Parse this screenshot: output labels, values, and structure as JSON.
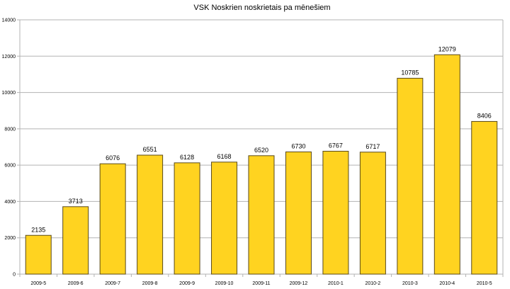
{
  "chart_data": {
    "type": "bar",
    "title": "VSK Noskrien noskrietais pa mēnešiem",
    "xlabel": "",
    "ylabel": "",
    "categories": [
      "2009-5",
      "2009-6",
      "2009-7",
      "2009-8",
      "2009-9",
      "2009-10",
      "2009-11",
      "2009-12",
      "2010-1",
      "2010-2",
      "2010-3",
      "2010-4",
      "2010-5"
    ],
    "values": [
      2135,
      3713,
      6076,
      6551,
      6128,
      6168,
      6520,
      6730,
      6767,
      6717,
      10785,
      12079,
      8406
    ],
    "ylim": [
      0,
      14000
    ],
    "yticks": [
      0,
      2000,
      4000,
      6000,
      8000,
      10000,
      12000,
      14000
    ],
    "grid": true,
    "legend": "none",
    "colors": {
      "bar": "#FFD320",
      "bar_border": "#5a4a1a",
      "grid": "#b3b3b3"
    }
  }
}
